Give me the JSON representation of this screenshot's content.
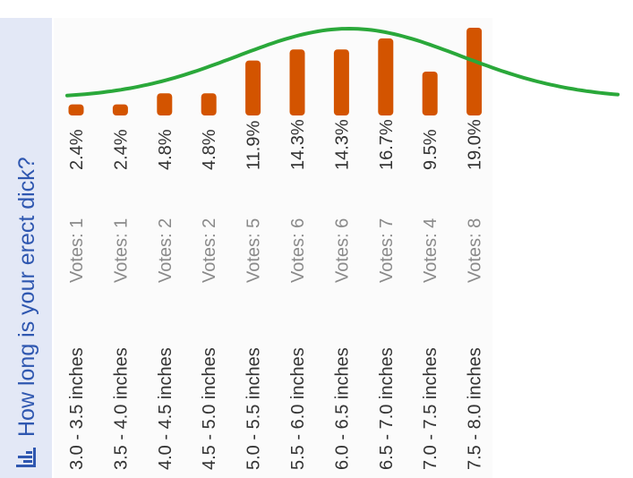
{
  "poll": {
    "title": "How long is your erect dick?",
    "icon": "poll-chart-icon"
  },
  "chart_data": {
    "type": "bar",
    "title": "How long is your erect dick?",
    "categories": [
      "3.0 - 3.5 inches",
      "3.5 - 4.0 inches",
      "4.0 - 4.5 inches",
      "4.5 - 5.0 inches",
      "5.0 - 5.5 inches",
      "5.5 - 6.0 inches",
      "6.0 - 6.5 inches",
      "6.5 - 7.0 inches",
      "7.0 - 7.5 inches",
      "7.5 - 8.0 inches"
    ],
    "vote_labels": [
      "Votes: 1",
      "Votes: 1",
      "Votes: 2",
      "Votes: 2",
      "Votes: 5",
      "Votes: 6",
      "Votes: 6",
      "Votes: 7",
      "Votes: 4",
      "Votes: 8"
    ],
    "percent_labels": [
      "2.4%",
      "2.4%",
      "4.8%",
      "4.8%",
      "11.9%",
      "14.3%",
      "14.3%",
      "16.7%",
      "9.5%",
      "19.0%"
    ],
    "votes": [
      1,
      1,
      2,
      2,
      5,
      6,
      6,
      7,
      4,
      8
    ],
    "values": [
      2.4,
      2.4,
      4.8,
      4.8,
      11.9,
      14.3,
      14.3,
      16.7,
      9.5,
      19.0
    ],
    "ylim": [
      0,
      19.0
    ],
    "bar_color": "#d35400",
    "curve_color": "#2aa83a",
    "title_color": "#2f57b0"
  }
}
